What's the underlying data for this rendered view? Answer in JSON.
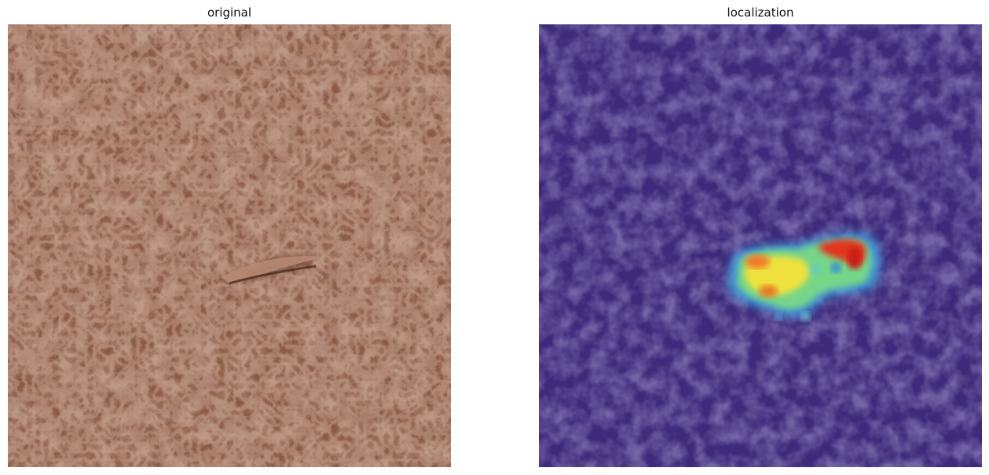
{
  "figure": {
    "panels": [
      {
        "title": "original",
        "content": "leather-texture-with-defect",
        "base_color": "#8a5a45"
      },
      {
        "title": "localization",
        "content": "anomaly-heatmap-overlay",
        "base_color": "#3d2a7a",
        "colormap": "jet"
      }
    ]
  }
}
